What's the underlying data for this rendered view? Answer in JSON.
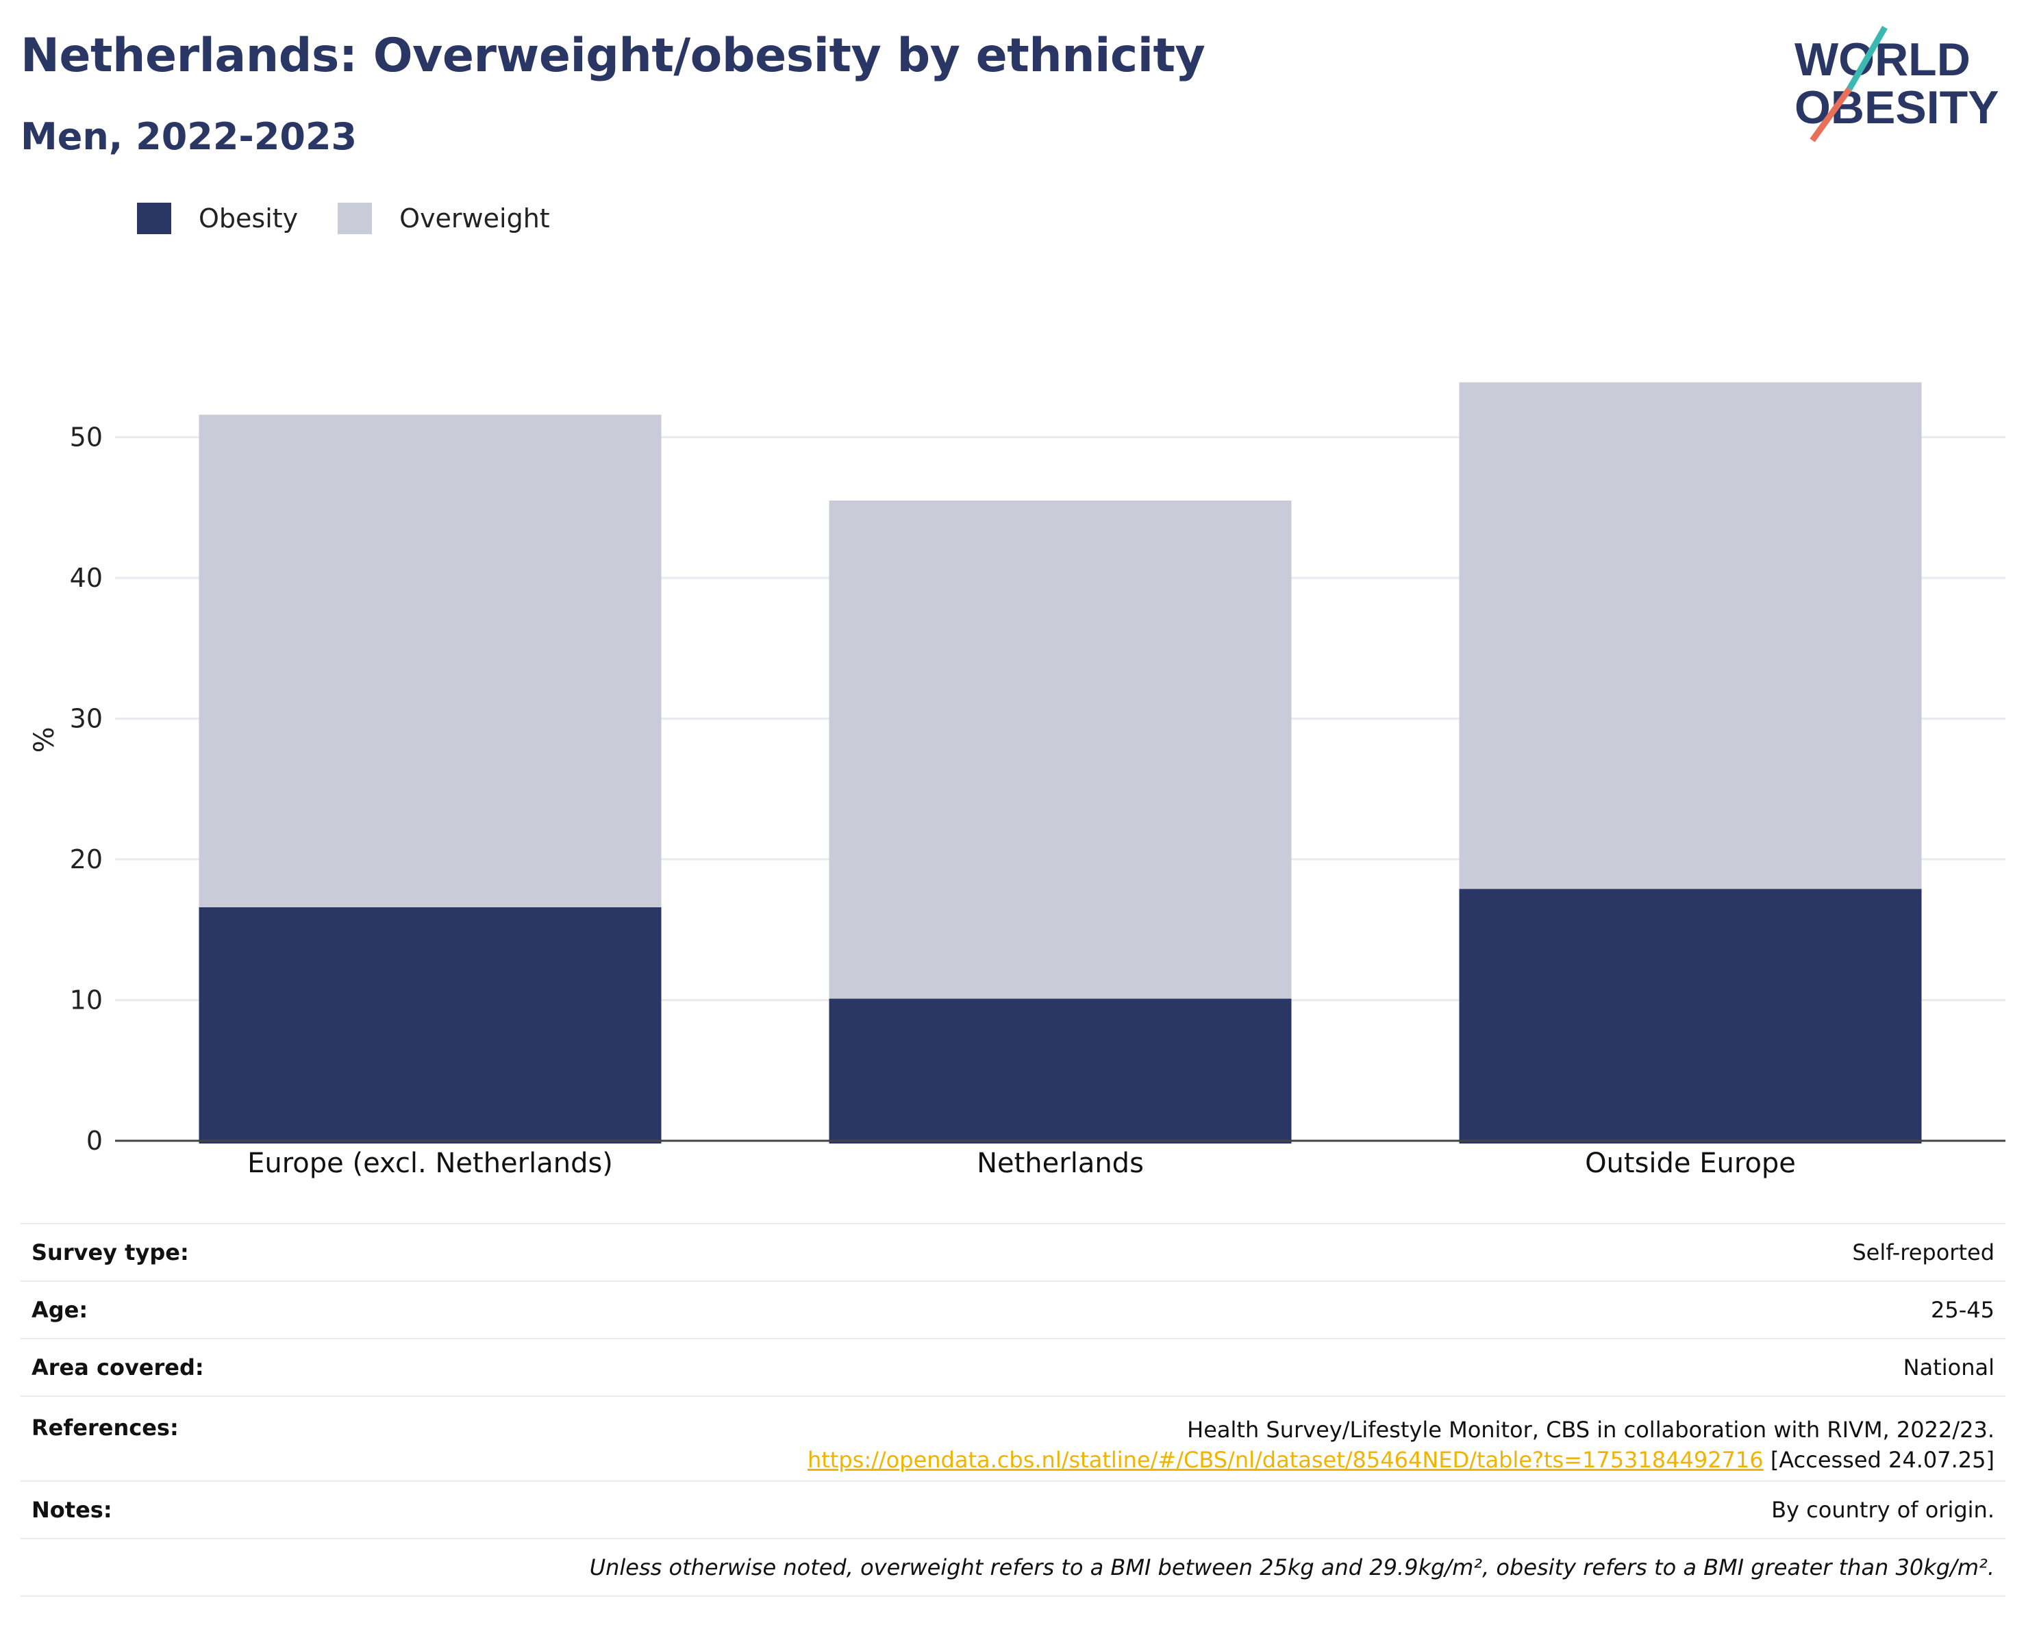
{
  "header": {
    "title": "Netherlands: Overweight/obesity by ethnicity",
    "subtitle": "Men, 2022-2023"
  },
  "logo": {
    "line1": "WORLD",
    "line2": "OBESITY"
  },
  "legend": [
    {
      "label": "Obesity",
      "color": "#2a3664"
    },
    {
      "label": "Overweight",
      "color": "#c9ccd8"
    }
  ],
  "chart_data": {
    "type": "bar",
    "stacked": true,
    "categories": [
      "Europe (excl. Netherlands)",
      "Netherlands",
      "Outside Europe"
    ],
    "series": [
      {
        "name": "Obesity",
        "color": "#2a3664",
        "values": [
          16.6,
          10.1,
          17.9
        ]
      },
      {
        "name": "Overweight",
        "color": "#c9ccd8",
        "values": [
          35.0,
          35.4,
          36.0
        ]
      }
    ],
    "totals": [
      51.6,
      45.5,
      53.9
    ],
    "ylabel": "%",
    "ylim": [
      0,
      57
    ],
    "yticks": [
      0,
      10,
      20,
      30,
      40,
      50
    ],
    "grid": true,
    "legend_position": "top-left"
  },
  "info": {
    "survey_type": {
      "label": "Survey type:",
      "value": "Self-reported"
    },
    "age": {
      "label": "Age:",
      "value": "25-45"
    },
    "area": {
      "label": "Area covered:",
      "value": "National"
    },
    "references": {
      "label": "References:",
      "line1": "Health Survey/Lifestyle Monitor, CBS in collaboration with RIVM, 2022/23.",
      "link": "https://opendata.cbs.nl/statline/#/CBS/nl/dataset/85464NED/table?ts=1753184492716",
      "accessed": " [Accessed 24.07.25]"
    },
    "notes": {
      "label": "Notes:",
      "value": "By country of origin."
    },
    "footnote": "Unless otherwise noted, overweight refers to a BMI between 25kg and 29.9kg/m², obesity refers to a BMI greater than 30kg/m²."
  }
}
